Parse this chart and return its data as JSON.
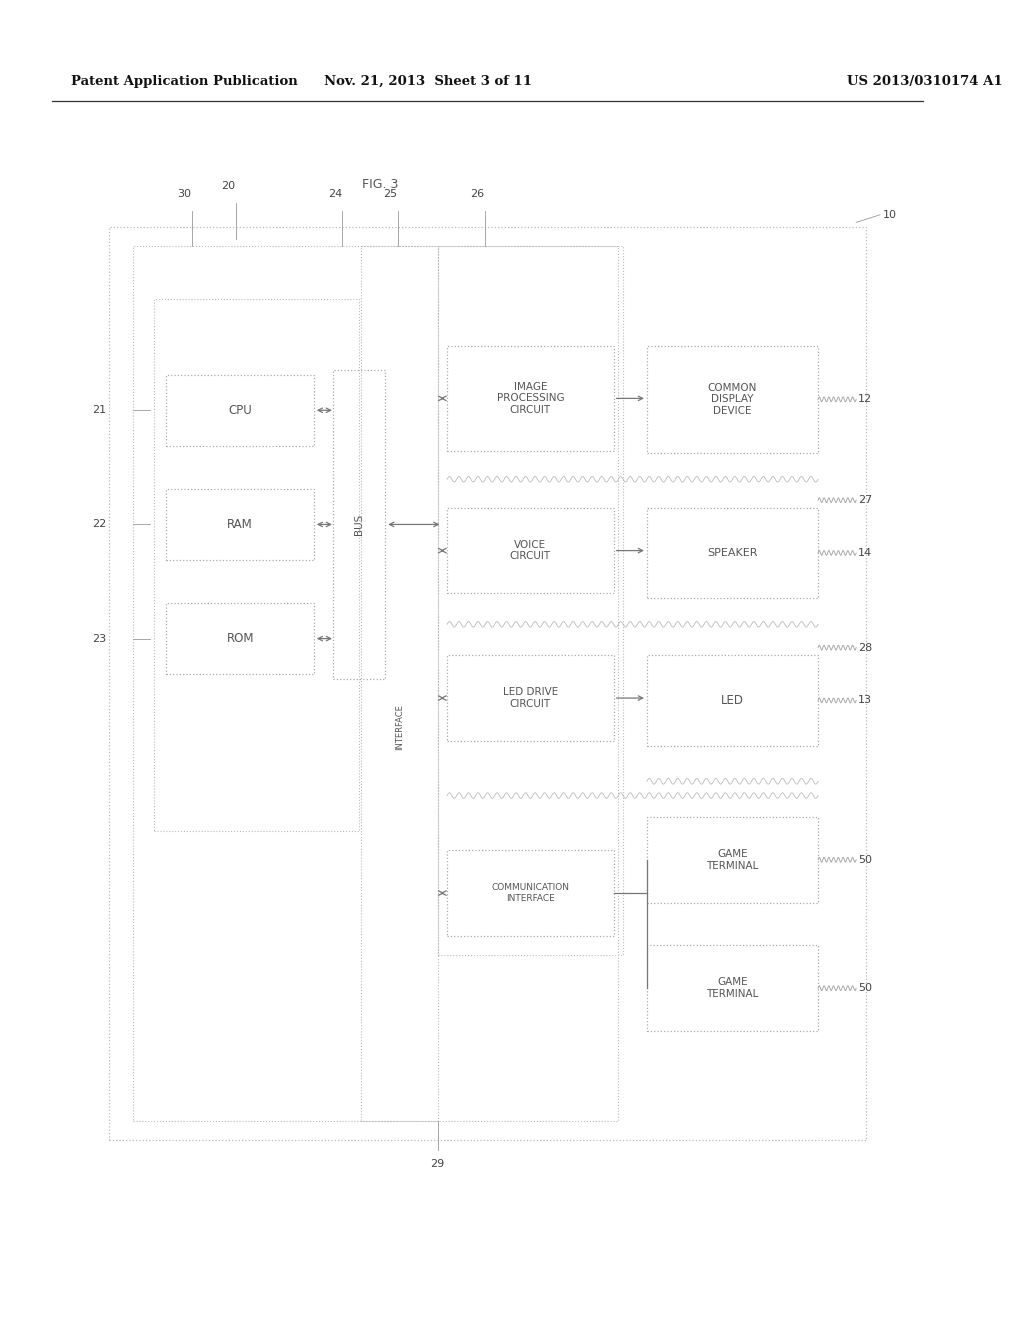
{
  "bg_color": "#ffffff",
  "header_left": "Patent Application Publication",
  "header_mid": "Nov. 21, 2013  Sheet 3 of 11",
  "header_right": "US 2013/0310174 A1",
  "fig_label": "FIG. 3",
  "box_edge_color": "#aaaaaa",
  "line_color": "#888888",
  "text_color": "#555555",
  "arrow_color": "#777777"
}
